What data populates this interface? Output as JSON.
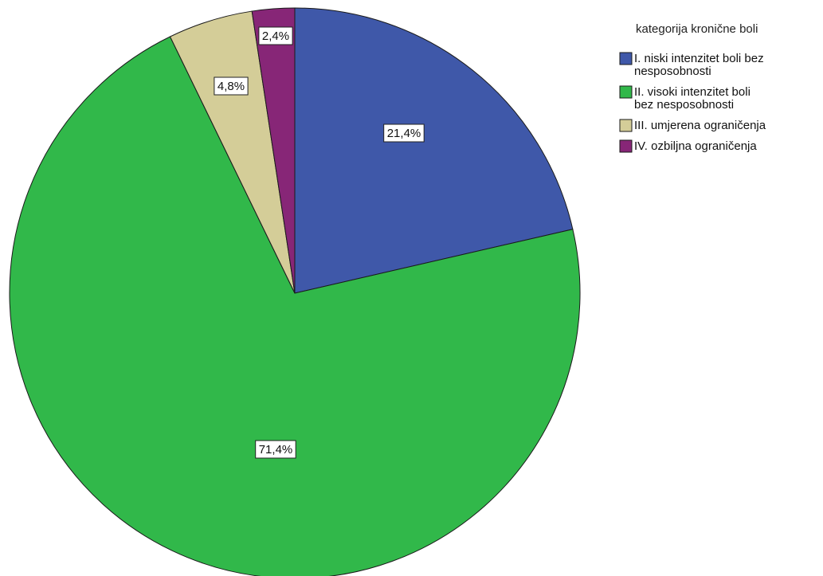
{
  "chart_data": {
    "type": "pie",
    "title": "",
    "legend_title": "kategorija kronične boli",
    "legend_position": "top-right",
    "start_angle_deg": 0,
    "direction": "clockwise",
    "slices": [
      {
        "label_lines": [
          "I. niski intenzitet boli bez",
          "nesposobnosti"
        ],
        "value": 21.4,
        "data_label": "21,4%",
        "color": "#3f58a9"
      },
      {
        "label_lines": [
          "II. visoki intenzitet boli",
          "bez nesposobnosti"
        ],
        "value": 71.4,
        "data_label": "71,4%",
        "color": "#31b84a"
      },
      {
        "label_lines": [
          "III. umjerena ograničenja"
        ],
        "value": 4.8,
        "data_label": "4,8%",
        "color": "#d4cd98"
      },
      {
        "label_lines": [
          "IV. ozbiljna ograničenja"
        ],
        "value": 2.4,
        "data_label": "2,4%",
        "color": "#872677"
      }
    ]
  }
}
